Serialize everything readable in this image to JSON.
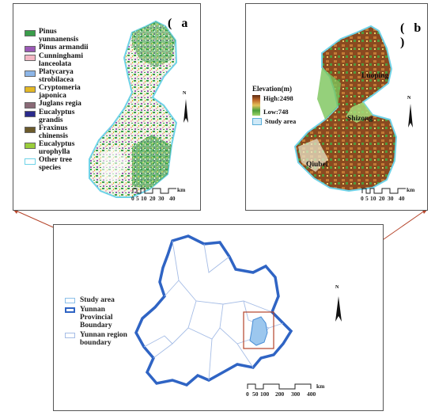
{
  "panel_a": {
    "label": "( a )",
    "legend": [
      {
        "name": "Pinus yunnanensis",
        "color": "#3a9d4a"
      },
      {
        "name": "Pinus armandii",
        "color": "#9b59b6"
      },
      {
        "name": "Cunninghami lanceolata",
        "color": "#f4b7c4"
      },
      {
        "name": "Platycarya strobilacea",
        "color": "#8db6e8"
      },
      {
        "name": "Cryptomeria japonica",
        "color": "#e3b826"
      },
      {
        "name": "Juglans regia",
        "color": "#8a6a77"
      },
      {
        "name": "Eucalyptus grandis",
        "color": "#2a2a8c"
      },
      {
        "name": "Fraxinus chinensis",
        "color": "#6b5a2b"
      },
      {
        "name": "Eucalyptus urophylla",
        "color": "#9acd3b"
      },
      {
        "name": "Other tree species",
        "color": "#ffffff"
      }
    ],
    "scale_labels": [
      "0",
      "5",
      "10",
      "20",
      "30",
      "40"
    ],
    "scale_unit": "km",
    "north": "N"
  },
  "panel_b": {
    "label": "( b )",
    "legend_title": "Elevation(m)",
    "high_label": "High:2498",
    "low_label": "Low:748",
    "study_area_label": "Study area",
    "places": [
      "Luoping",
      "Shizong",
      "Qiubei"
    ],
    "scale_labels": [
      "0",
      "5",
      "10",
      "20",
      "30",
      "40"
    ],
    "scale_unit": "km",
    "north": "N"
  },
  "panel_c": {
    "legend": [
      {
        "name": "Study area",
        "color": "#b8d8f5"
      },
      {
        "name": "Yunnan Provincial Boundary",
        "color": "#3a6bc9"
      },
      {
        "name": "Yunnan region boundary",
        "color": "#a9c4ec"
      }
    ],
    "scale_labels": [
      "0",
      "50",
      "100",
      "200",
      "300",
      "400"
    ],
    "scale_unit": "km",
    "north": "N"
  }
}
